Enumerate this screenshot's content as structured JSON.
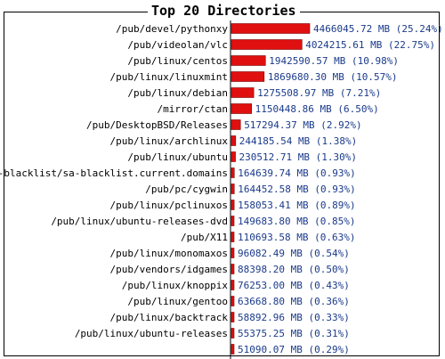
{
  "chart_data": {
    "type": "bar",
    "orientation": "horizontal",
    "title": "Top 20 Directories",
    "unit": "MB",
    "bar_color": "#e01010",
    "categories": [
      "/pub/devel/pythonxy",
      "/pub/videolan/vlc",
      "/pub/linux/centos",
      "/pub/linux/linuxmint",
      "/pub/linux/debian",
      "/mirror/ctan",
      "/pub/DesktopBSD/Releases",
      "/pub/linux/archlinux",
      "/pub/linux/ubuntu",
      "/sa-blacklist/sa-blacklist.current.domains",
      "/pub/pc/cygwin",
      "/pub/linux/pclinuxos",
      "/pub/linux/ubuntu-releases-dvd",
      "/pub/X11",
      "/pub/linux/monomaxos",
      "/pub/vendors/idgames",
      "/pub/linux/knoppix",
      "/pub/linux/gentoo",
      "/pub/linux/backtrack",
      "/pub/linux/ubuntu-releases",
      ""
    ],
    "values": [
      4466045.72,
      4024215.61,
      1942590.57,
      1869680.3,
      1275508.97,
      1150448.86,
      517294.37,
      244185.54,
      230512.71,
      164639.74,
      164452.58,
      158053.41,
      149683.8,
      110693.58,
      96082.49,
      88398.2,
      76253.0,
      63668.8,
      58892.96,
      55375.25,
      51090.07
    ],
    "value_labels": [
      "4466045.72 MB (25.24%)",
      "4024215.61 MB (22.75%)",
      "1942590.57 MB (10.98%)",
      "1869680.30 MB (10.57%)",
      "1275508.97 MB (7.21%)",
      "1150448.86 MB (6.50%)",
      "517294.37 MB (2.92%)",
      "244185.54 MB (1.38%)",
      "230512.71 MB (1.30%)",
      "164639.74 MB (0.93%)",
      "164452.58 MB (0.93%)",
      "158053.41 MB (0.89%)",
      "149683.80 MB (0.85%)",
      "110693.58 MB (0.63%)",
      "96082.49 MB (0.54%)",
      "88398.20 MB (0.50%)",
      "76253.00 MB (0.43%)",
      "63668.80 MB (0.36%)",
      "58892.96 MB (0.33%)",
      "55375.25 MB (0.31%)",
      "51090.07 MB (0.29%)"
    ]
  }
}
